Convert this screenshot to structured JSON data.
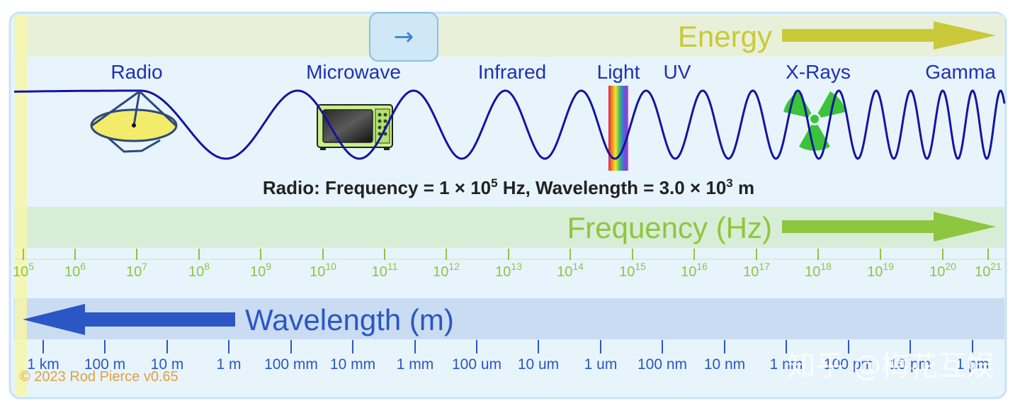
{
  "toggle_button": {
    "icon": "right-arrow-icon",
    "symbol": "→"
  },
  "energy": {
    "label": "Energy",
    "color": "#c9c93a"
  },
  "regions": [
    {
      "label": "Radio"
    },
    {
      "label": "Microwave"
    },
    {
      "label": "Infrared"
    },
    {
      "label": "Light"
    },
    {
      "label": "UV"
    },
    {
      "label": "X-Rays"
    },
    {
      "label": "Gamma"
    }
  ],
  "readout": {
    "prefix": "Radio: Frequency = 1 × 10",
    "freq_exp": "5",
    "middle": " Hz, Wavelength = 3.0 × 10",
    "wave_exp": "3",
    "suffix": " m"
  },
  "frequency": {
    "label": "Frequency (Hz)",
    "color": "#8dc63f",
    "ticks": [
      {
        "base": "10",
        "exp": "5"
      },
      {
        "base": "10",
        "exp": "6"
      },
      {
        "base": "10",
        "exp": "7"
      },
      {
        "base": "10",
        "exp": "8"
      },
      {
        "base": "10",
        "exp": "9"
      },
      {
        "base": "10",
        "exp": "10"
      },
      {
        "base": "10",
        "exp": "11"
      },
      {
        "base": "10",
        "exp": "12"
      },
      {
        "base": "10",
        "exp": "13"
      },
      {
        "base": "10",
        "exp": "14"
      },
      {
        "base": "10",
        "exp": "15"
      },
      {
        "base": "10",
        "exp": "16"
      },
      {
        "base": "10",
        "exp": "17"
      },
      {
        "base": "10",
        "exp": "18"
      },
      {
        "base": "10",
        "exp": "19"
      },
      {
        "base": "10",
        "exp": "20"
      },
      {
        "base": "10",
        "exp": "21"
      }
    ]
  },
  "wavelength": {
    "label": "Wavelength (m)",
    "color": "#2b56c4",
    "ticks": [
      "1 km",
      "100 m",
      "10 m",
      "1 m",
      "100 mm",
      "10 mm",
      "1 mm",
      "100 um",
      "10 um",
      "1 um",
      "100 nm",
      "10 nm",
      "1 nm",
      "100 pm",
      "10 pm",
      "1 pm"
    ]
  },
  "credit": "© 2023 Rod Pierce v0.65",
  "watermark": "知乎 @梅花互娱"
}
